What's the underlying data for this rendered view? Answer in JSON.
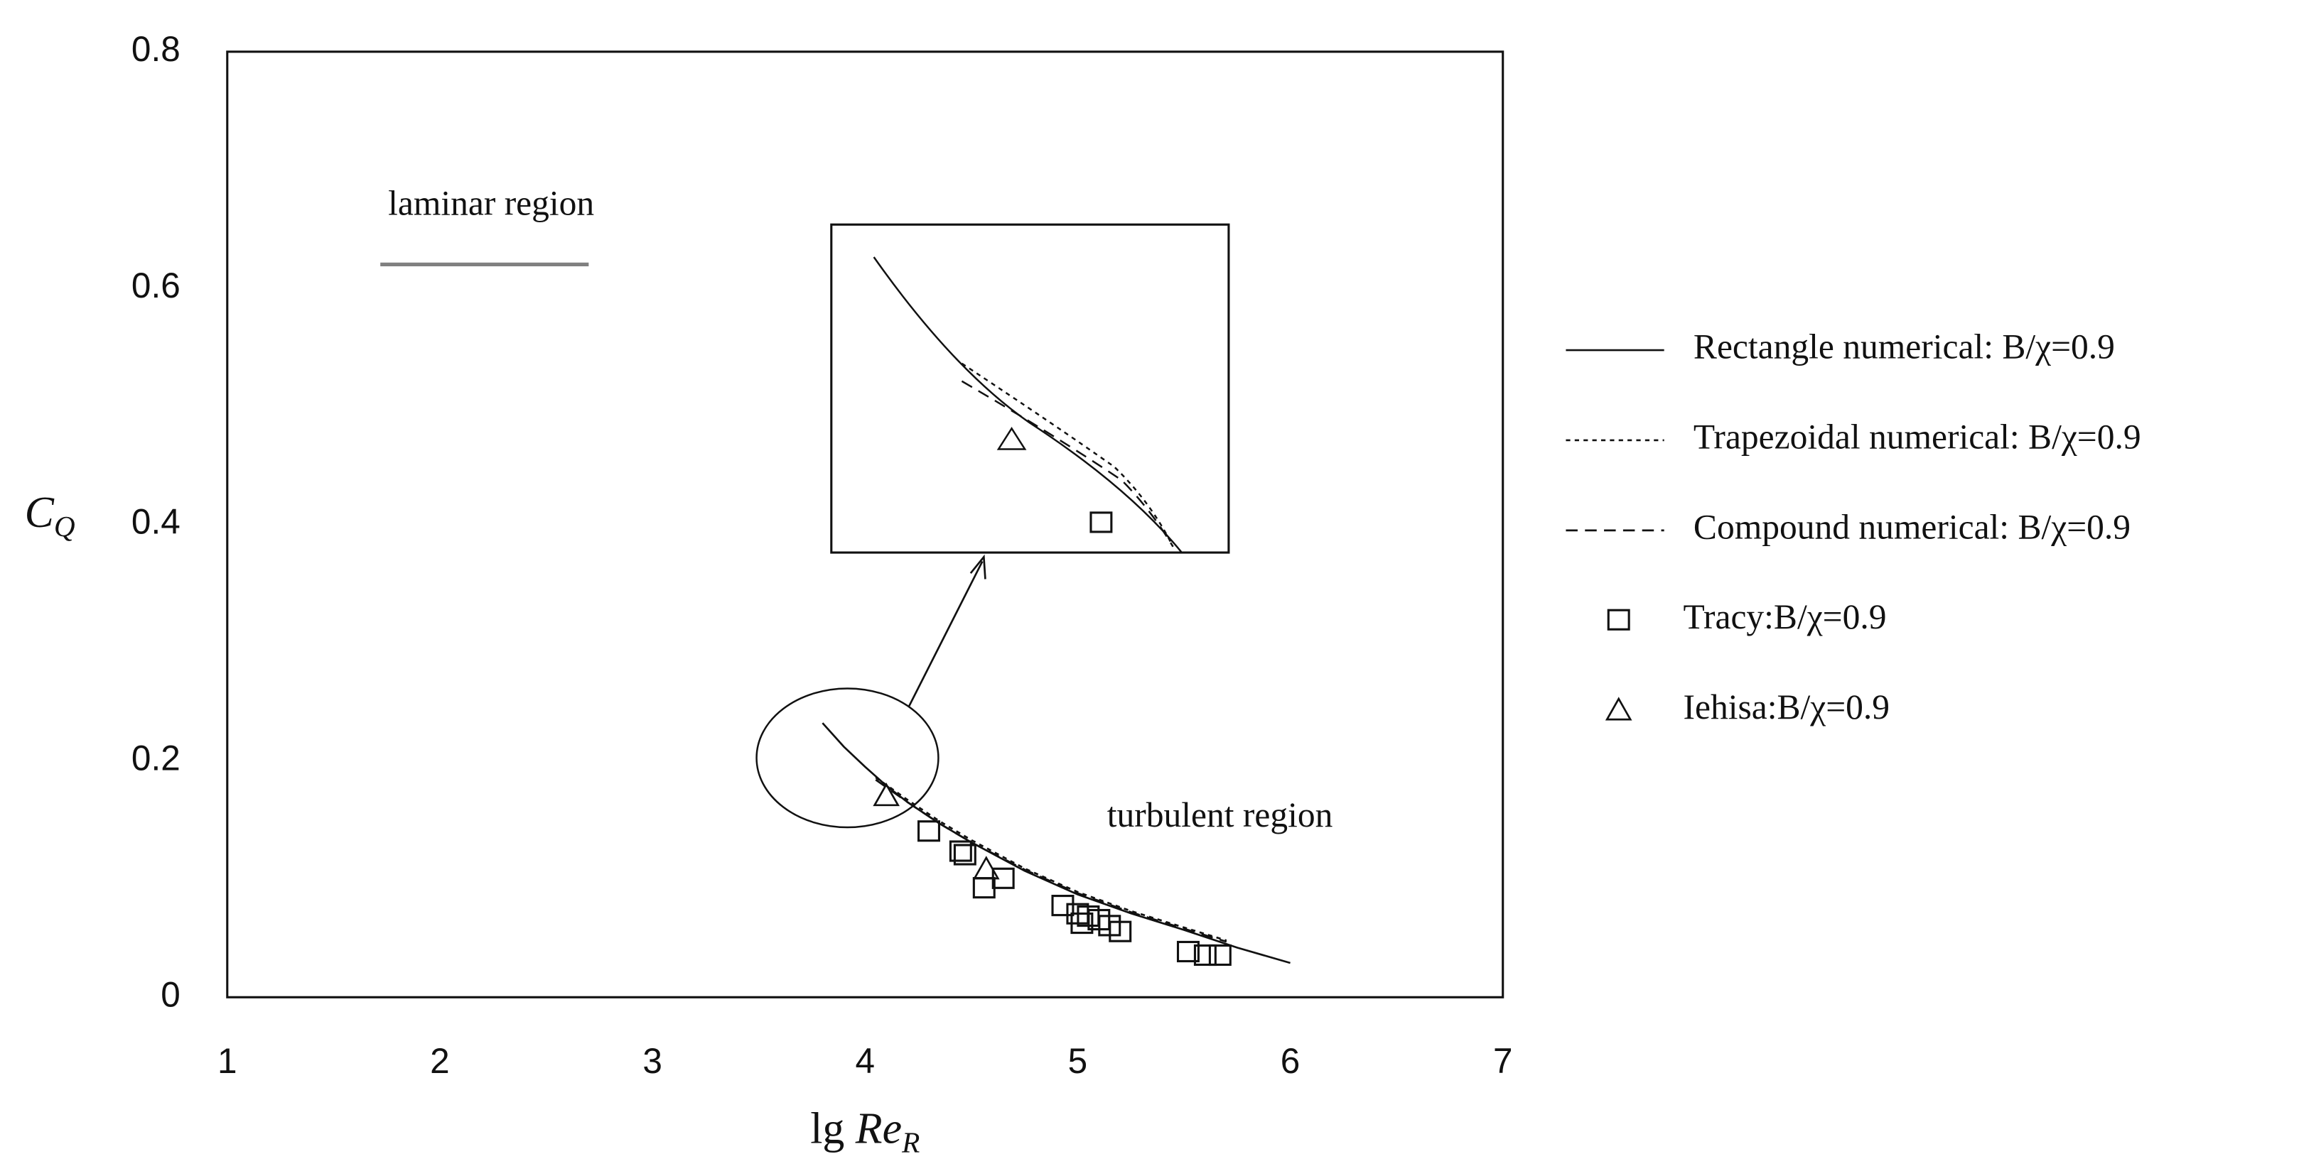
{
  "chart_data": {
    "type": "line",
    "x_label": {
      "prefix": "lg ",
      "symbol": "Re",
      "sub": "R"
    },
    "y_label": {
      "symbol": "C",
      "sub": "Q"
    },
    "xlim": [
      1,
      7
    ],
    "xticks": [
      1,
      2,
      3,
      4,
      5,
      6,
      7
    ],
    "ylim": [
      0,
      0.8
    ],
    "yticks": [
      0,
      0.2,
      0.4,
      0.6,
      0.8
    ],
    "grid": false,
    "annotations": [
      "laminar region",
      "turbulent region"
    ],
    "laminar_line": {
      "x": [
        1.72,
        2.7
      ],
      "values": [
        0.62,
        0.62
      ],
      "color": "#808080"
    },
    "series": [
      {
        "name": "Rectangle numerical: B/χ=0.9",
        "style": "solid",
        "color": "#111111",
        "x": [
          3.8,
          3.9,
          4.0,
          4.1,
          4.2,
          4.35,
          4.5,
          4.75,
          5.0,
          5.25,
          5.5,
          5.75,
          6.0
        ],
        "values": [
          0.232,
          0.212,
          0.195,
          0.179,
          0.165,
          0.147,
          0.131,
          0.107,
          0.087,
          0.071,
          0.057,
          0.042,
          0.029
        ]
      },
      {
        "name": "Trapezoidal numerical: B/χ=0.9",
        "style": "dotted",
        "color": "#111111",
        "x": [
          4.05,
          4.2,
          4.35,
          4.5,
          4.75,
          5.0,
          5.25,
          5.5,
          5.7
        ],
        "values": [
          0.186,
          0.167,
          0.149,
          0.133,
          0.109,
          0.089,
          0.073,
          0.059,
          0.048
        ]
      },
      {
        "name": "Compound numerical: B/χ=0.9",
        "style": "dashed",
        "color": "#111111",
        "x": [
          4.05,
          4.2,
          4.35,
          4.5,
          4.75,
          5.0,
          5.25,
          5.5,
          5.7
        ],
        "values": [
          0.184,
          0.165,
          0.147,
          0.131,
          0.108,
          0.088,
          0.072,
          0.058,
          0.047
        ]
      },
      {
        "name": "Tracy:B/χ=0.9",
        "style": "square",
        "color": "#111111",
        "x": [
          4.3,
          4.45,
          4.47,
          4.56,
          4.65,
          4.93,
          5.0,
          5.02,
          5.05,
          5.1,
          5.15,
          5.2,
          5.52,
          5.6,
          5.67
        ],
        "values": [
          0.14,
          0.123,
          0.12,
          0.092,
          0.1,
          0.077,
          0.07,
          0.062,
          0.068,
          0.065,
          0.06,
          0.055,
          0.038,
          0.035,
          0.035
        ]
      },
      {
        "name": "Iehisa:B/χ=0.9",
        "style": "triangle",
        "color": "#111111",
        "x": [
          4.1,
          4.57
        ],
        "values": [
          0.17,
          0.108
        ]
      }
    ]
  }
}
